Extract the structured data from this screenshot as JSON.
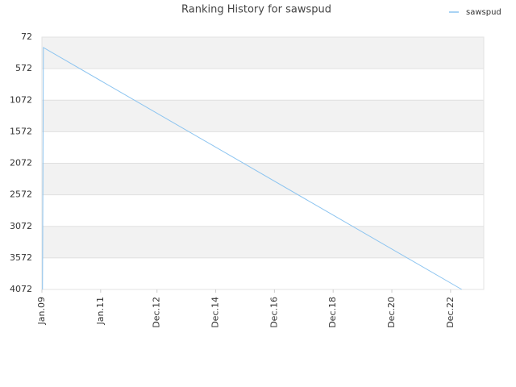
{
  "chart_data": {
    "type": "line",
    "title": "Ranking History for sawspud",
    "x": [
      2009.02,
      2009.05,
      2023.3
    ],
    "series": [
      {
        "name": "sawspud",
        "color": "#8cc4f0",
        "values": [
          4072,
          238,
          4072
        ]
      }
    ],
    "xlim": [
      2009.0,
      2024.05
    ],
    "xticks": [
      {
        "value": 2009.0,
        "label": "Jan.09"
      },
      {
        "value": 2011.0,
        "label": "Jan.11"
      },
      {
        "value": 2012.92,
        "label": "Dec.12"
      },
      {
        "value": 2014.92,
        "label": "Dec.14"
      },
      {
        "value": 2016.92,
        "label": "Dec.16"
      },
      {
        "value": 2018.92,
        "label": "Dec.18"
      },
      {
        "value": 2020.92,
        "label": "Dec.20"
      },
      {
        "value": 2022.92,
        "label": "Dec.22"
      }
    ],
    "ylim": [
      72,
      4072
    ],
    "yticks": [
      72,
      572,
      1072,
      1572,
      2072,
      2572,
      3072,
      3572,
      4072
    ],
    "y_reversed": true,
    "grid": true,
    "legend": "top-right"
  }
}
